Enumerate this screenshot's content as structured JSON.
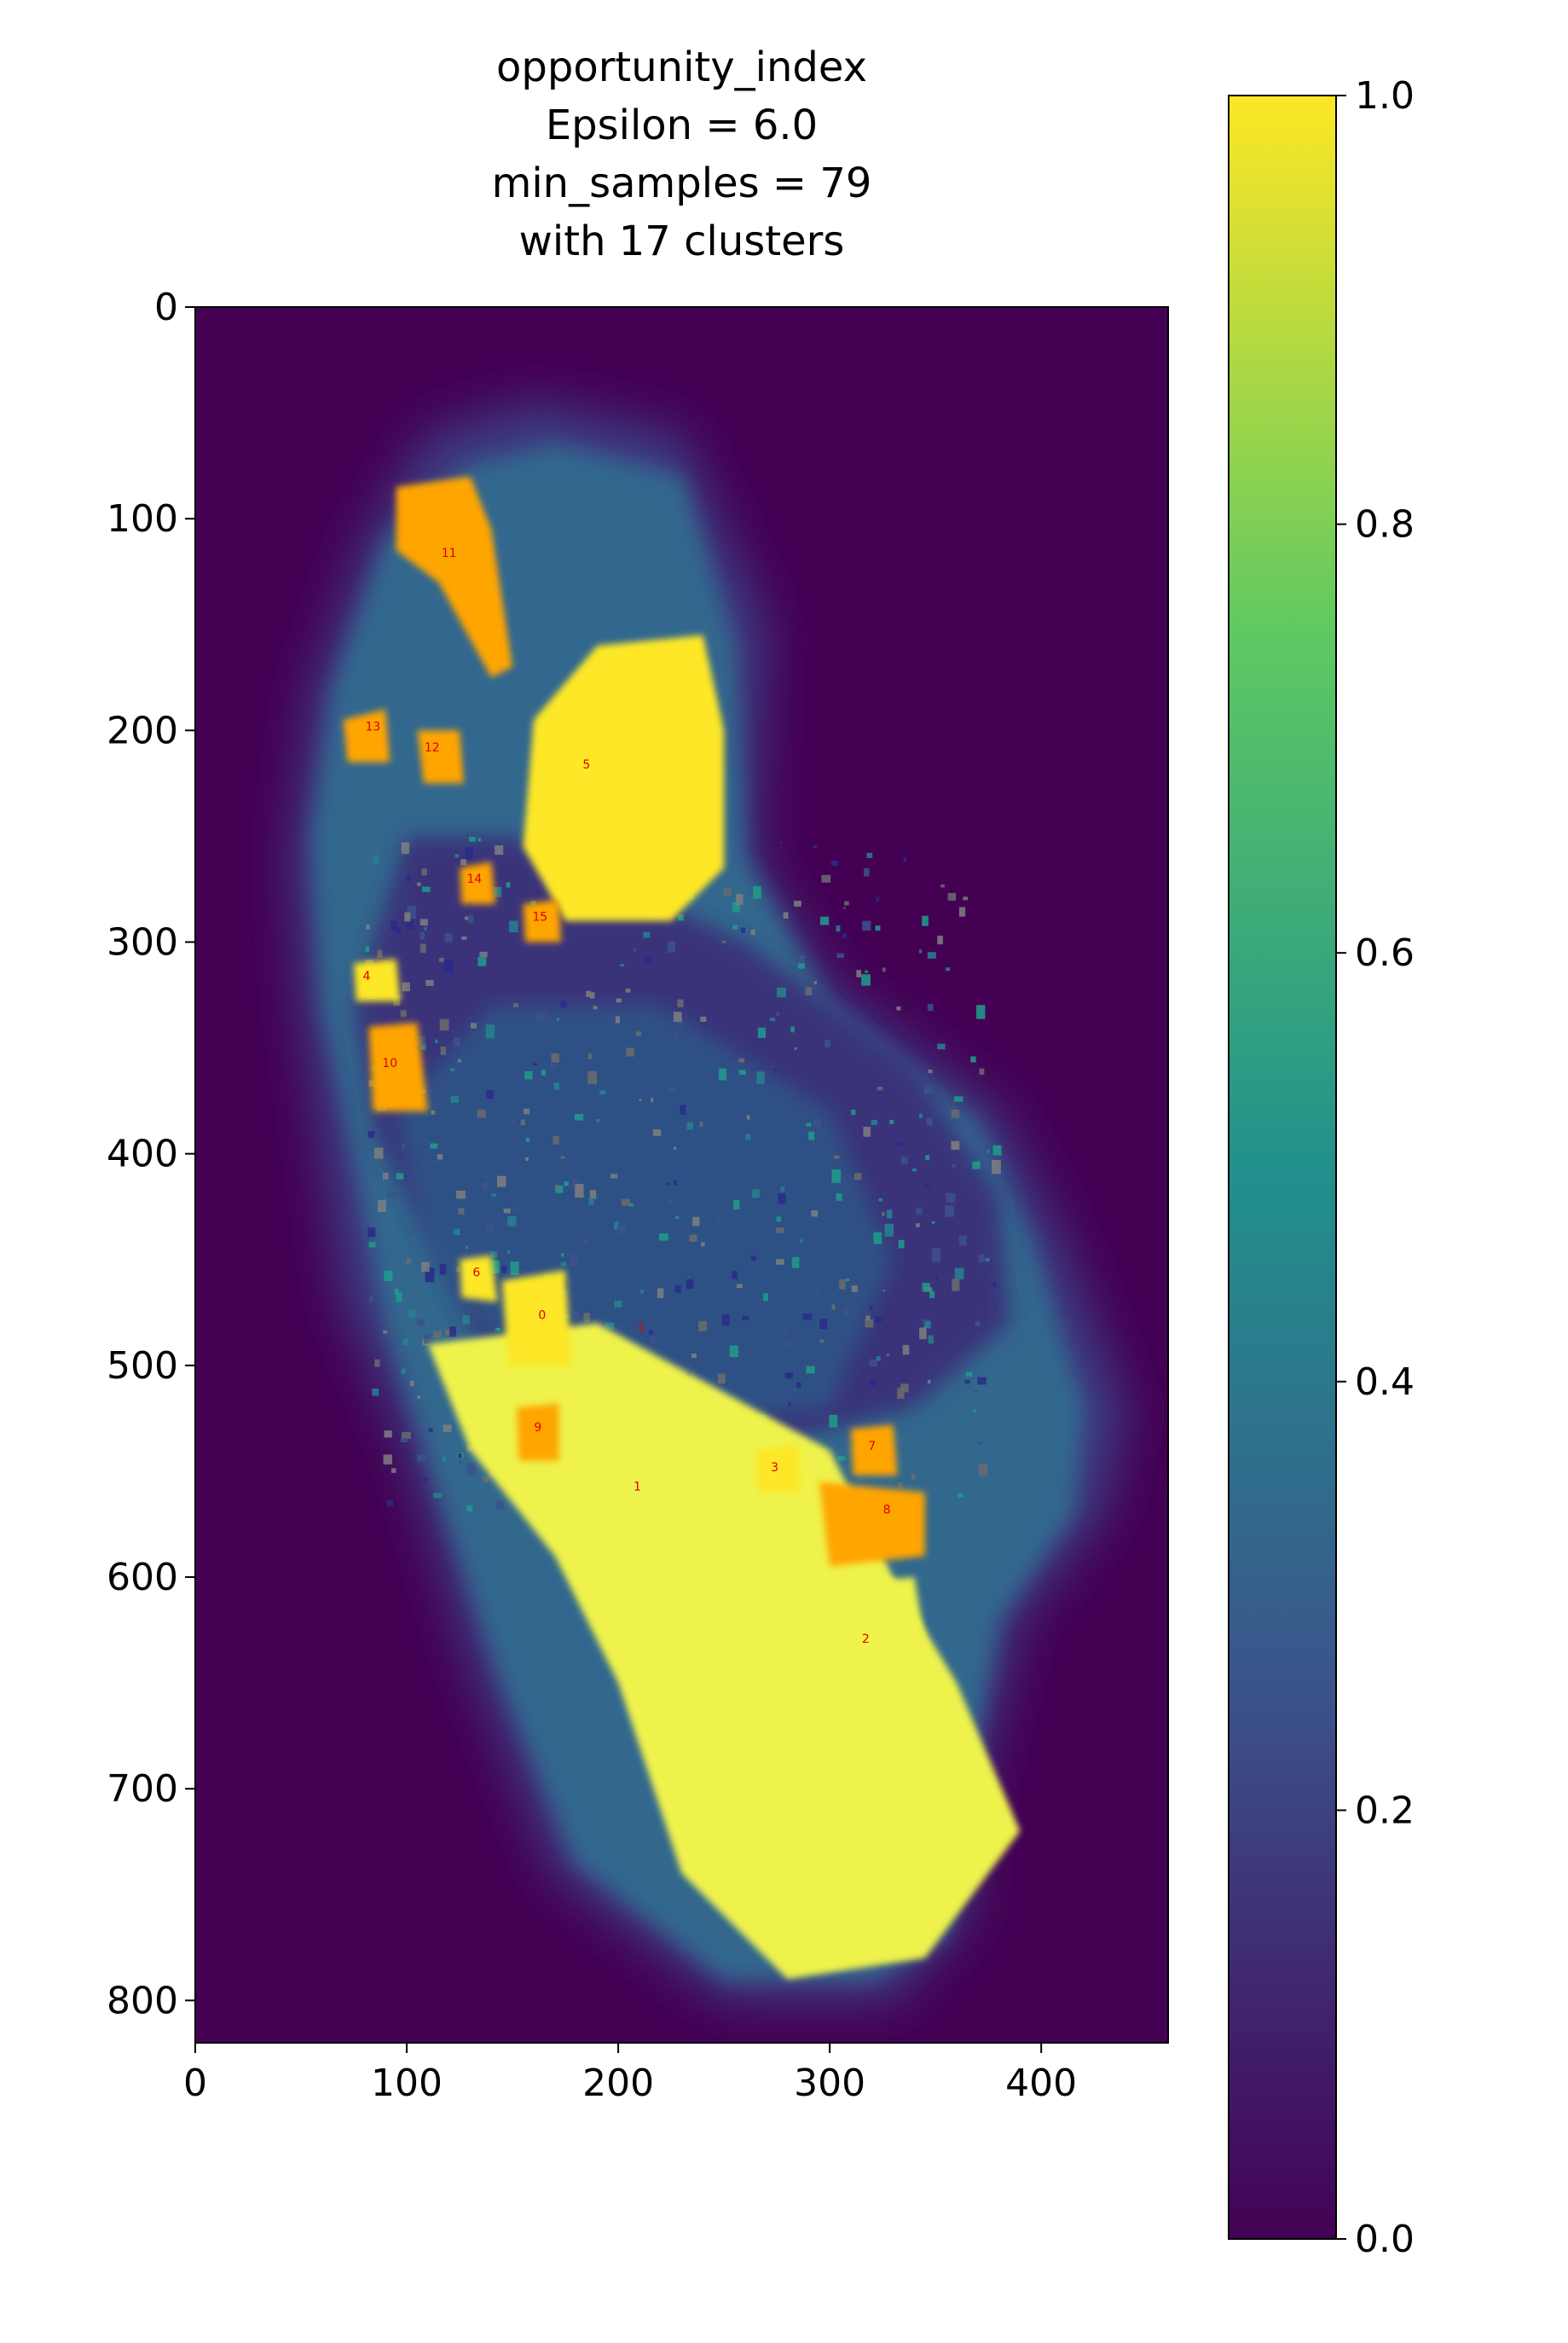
{
  "chart_data": {
    "type": "heatmap",
    "title_lines": [
      "opportunity_index",
      "Epsilon = 6.0",
      "min_samples = 79",
      "with 17 clusters"
    ],
    "xlabel": "",
    "ylabel": "",
    "xlim": [
      0,
      460
    ],
    "ylim": [
      820,
      0
    ],
    "x_ticks": [
      0,
      100,
      200,
      300,
      400
    ],
    "y_ticks": [
      0,
      100,
      200,
      300,
      400,
      500,
      600,
      700,
      800
    ],
    "colorbar": {
      "colormap": "viridis",
      "range": [
        0.0,
        1.0
      ],
      "ticks": [
        "0.0",
        "0.2",
        "0.4",
        "0.6",
        "0.8",
        "1.0"
      ],
      "colors": [
        "#440154",
        "#3b528b",
        "#21918c",
        "#5ec962",
        "#fde725"
      ]
    },
    "background_color": "#440154",
    "cluster_label_color": "#e00000",
    "cluster_regions": [
      {
        "label": "11",
        "x": 120,
        "y": 118,
        "color": "#ffa500"
      },
      {
        "label": "5",
        "x": 185,
        "y": 218,
        "color": "#fde725"
      },
      {
        "label": "12",
        "x": 112,
        "y": 210,
        "color": "#ffa500"
      },
      {
        "label": "13",
        "x": 84,
        "y": 200,
        "color": "#ffa500"
      },
      {
        "label": "14",
        "x": 132,
        "y": 272,
        "color": "#ffa500"
      },
      {
        "label": "15",
        "x": 163,
        "y": 290,
        "color": "#ffa500"
      },
      {
        "label": "4",
        "x": 81,
        "y": 318,
        "color": "#fde725"
      },
      {
        "label": "10",
        "x": 92,
        "y": 359,
        "color": "#ffa500"
      },
      {
        "label": "6",
        "x": 133,
        "y": 458,
        "color": "#fde725"
      },
      {
        "label": "0",
        "x": 164,
        "y": 478,
        "color": "#fde725"
      },
      {
        "label": "-1",
        "x": 210,
        "y": 484,
        "color": "#808080"
      },
      {
        "label": "9",
        "x": 162,
        "y": 531,
        "color": "#ffa500"
      },
      {
        "label": "1",
        "x": 209,
        "y": 559,
        "color": "#eef24c"
      },
      {
        "label": "7",
        "x": 320,
        "y": 540,
        "color": "#ffa500"
      },
      {
        "label": "8",
        "x": 327,
        "y": 570,
        "color": "#ffa500"
      },
      {
        "label": "2",
        "x": 317,
        "y": 631,
        "color": "#eef24c"
      },
      {
        "label": "3",
        "x": 274,
        "y": 550,
        "color": "#fde725"
      }
    ]
  }
}
